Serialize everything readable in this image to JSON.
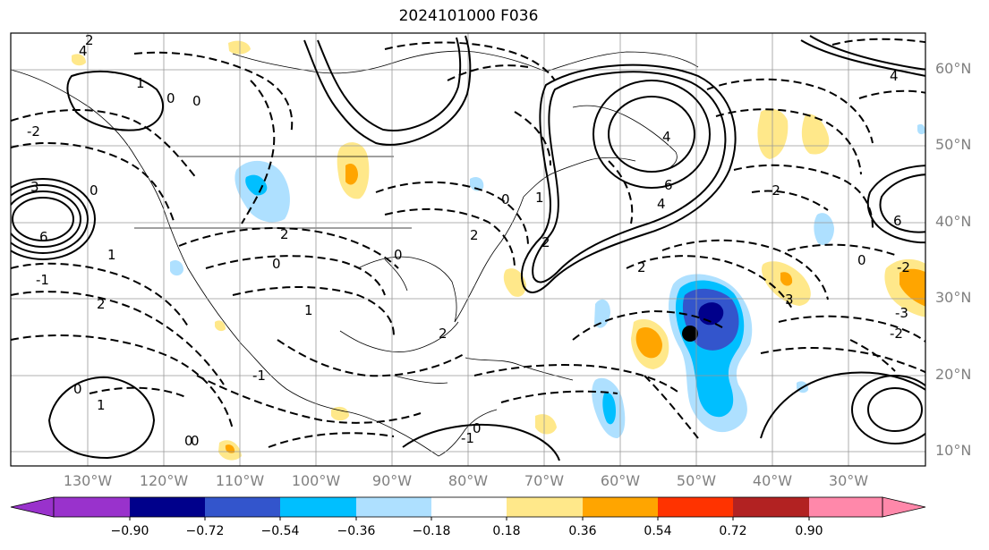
{
  "title": "2024101000 F036",
  "lat_labels": [
    "60°N",
    "50°N",
    "40°N",
    "30°N",
    "20°N",
    "10°N"
  ],
  "lon_labels": [
    "130°W",
    "120°W",
    "110°W",
    "100°W",
    "90°W",
    "80°W",
    "70°W",
    "60°W",
    "50°W",
    "40°W",
    "30°W"
  ],
  "colorbar": {
    "ticks": [
      "−0.90",
      "−0.72",
      "−0.54",
      "−0.36",
      "−0.18",
      "0.18",
      "0.36",
      "0.54",
      "0.72",
      "0.90"
    ],
    "colors": [
      "#9932cc",
      "#00008b",
      "#3355cc",
      "#00bfff",
      "#aee0ff",
      "#ffffff",
      "#ffe88a",
      "#ffa500",
      "#ff3300",
      "#b22222",
      "#ff88aa"
    ]
  },
  "contour_labels": [
    "0",
    "2",
    "4",
    "6",
    "1",
    "3",
    "-1",
    "-2",
    "0",
    "2",
    "2",
    "4",
    "6",
    "1",
    "0",
    "2",
    "-2",
    "4",
    "6",
    "0",
    "2",
    "-1",
    "0",
    "2",
    "4",
    "-2",
    "3",
    "1",
    "-1",
    "0",
    "0",
    "2",
    "0",
    "-2",
    "0",
    "1",
    "-3",
    "0",
    "1",
    "0"
  ],
  "colors": {
    "positive_anomaly": "#ffe88a",
    "strong_positive": "#ffa500",
    "negative_anomaly": "#aee0ff",
    "strong_negative": "#00bfff",
    "very_strong_negative": "#3355cc",
    "extreme_negative": "#00008b",
    "contour": "#000000",
    "grid": "#999999"
  }
}
